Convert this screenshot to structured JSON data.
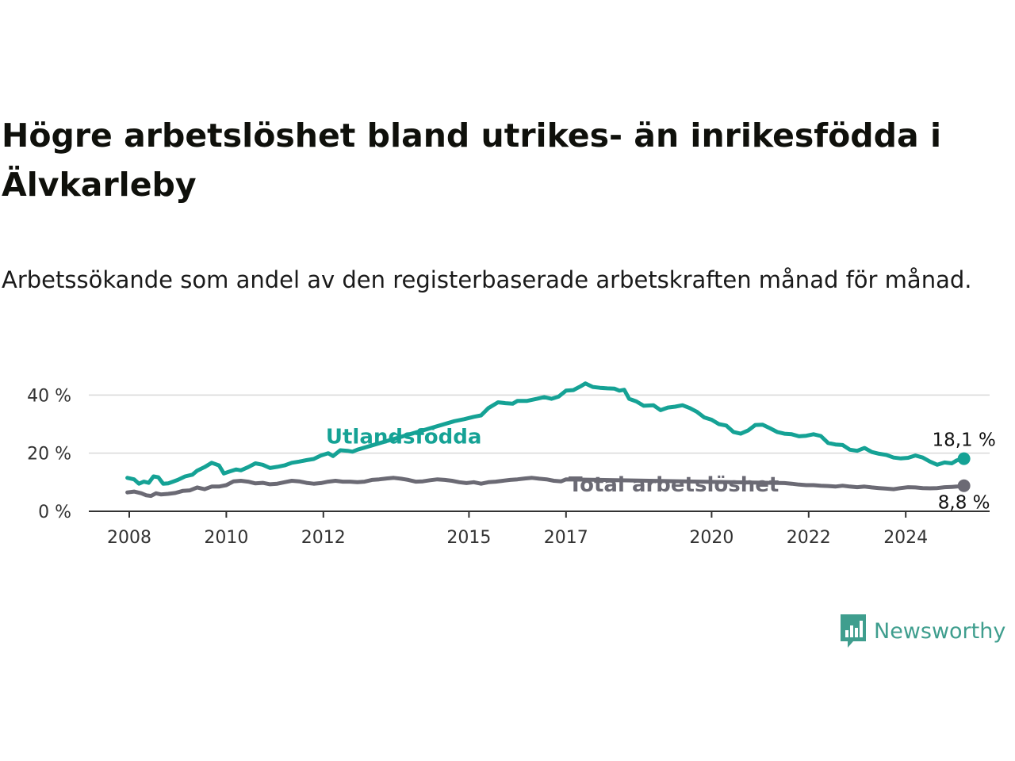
{
  "header": {
    "title": "Högre arbetslöshet bland utrikes- än inrikesfödda i Älvkarleby",
    "subtitle": "Arbetssökande som andel av den registerbaserade arbetskraften månad för månad."
  },
  "brand": {
    "name": "Newsworthy",
    "icon": "newsworthy-logo-icon",
    "color": "#3f9e8e"
  },
  "chart_data": {
    "type": "line",
    "ylim": [
      0,
      45
    ],
    "xlim": [
      2007.2,
      2025.8
    ],
    "yticks": [
      0,
      20,
      40
    ],
    "ytick_labels": [
      "0 %",
      "20 %",
      "40 %"
    ],
    "xticks": [
      2008,
      2010,
      2012,
      2015,
      2017,
      2020,
      2022,
      2024
    ],
    "xtick_labels": [
      "2008",
      "2010",
      "2012",
      "2015",
      "2017",
      "2020",
      "2022",
      "2024"
    ],
    "grid": "horizontal",
    "series": [
      {
        "name": "Utlandsfödda",
        "color": "#15a295",
        "end_label": "18,1 %",
        "points": [
          [
            2007.96,
            11.5
          ],
          [
            2008.1,
            11.0
          ],
          [
            2008.2,
            9.5
          ],
          [
            2008.3,
            10.2
          ],
          [
            2008.4,
            9.8
          ],
          [
            2008.5,
            12.0
          ],
          [
            2008.6,
            11.7
          ],
          [
            2008.7,
            9.5
          ],
          [
            2008.8,
            9.6
          ],
          [
            2008.9,
            10.2
          ],
          [
            2009.0,
            10.8
          ],
          [
            2009.15,
            12.0
          ],
          [
            2009.3,
            12.6
          ],
          [
            2009.4,
            14.0
          ],
          [
            2009.55,
            15.2
          ],
          [
            2009.7,
            16.7
          ],
          [
            2009.85,
            15.8
          ],
          [
            2009.95,
            13.0
          ],
          [
            2010.05,
            13.6
          ],
          [
            2010.2,
            14.4
          ],
          [
            2010.3,
            14.1
          ],
          [
            2010.45,
            15.2
          ],
          [
            2010.6,
            16.5
          ],
          [
            2010.75,
            16.0
          ],
          [
            2010.9,
            14.9
          ],
          [
            2011.05,
            15.3
          ],
          [
            2011.2,
            15.8
          ],
          [
            2011.35,
            16.7
          ],
          [
            2011.5,
            17.1
          ],
          [
            2011.65,
            17.6
          ],
          [
            2011.8,
            18.0
          ],
          [
            2011.95,
            19.2
          ],
          [
            2012.1,
            20.0
          ],
          [
            2012.2,
            19.0
          ],
          [
            2012.35,
            21.0
          ],
          [
            2012.5,
            20.8
          ],
          [
            2012.6,
            20.5
          ],
          [
            2012.7,
            21.2
          ],
          [
            2014.7,
            31.0
          ],
          [
            2014.9,
            31.7
          ],
          [
            2015.1,
            32.5
          ],
          [
            2015.25,
            33.0
          ],
          [
            2015.4,
            35.5
          ],
          [
            2015.6,
            37.5
          ],
          [
            2015.75,
            37.2
          ],
          [
            2015.9,
            37.0
          ],
          [
            2016.0,
            38.0
          ],
          [
            2016.2,
            38.0
          ],
          [
            2016.4,
            38.7
          ],
          [
            2016.55,
            39.3
          ],
          [
            2016.7,
            38.7
          ],
          [
            2016.85,
            39.5
          ],
          [
            2017.0,
            41.5
          ],
          [
            2017.15,
            41.7
          ],
          [
            2017.3,
            43.0
          ],
          [
            2017.4,
            44.0
          ],
          [
            2017.55,
            42.8
          ],
          [
            2017.7,
            42.5
          ],
          [
            2017.85,
            42.3
          ],
          [
            2018.0,
            42.2
          ],
          [
            2018.1,
            41.5
          ],
          [
            2018.2,
            41.8
          ],
          [
            2018.3,
            38.7
          ],
          [
            2018.45,
            37.8
          ],
          [
            2018.6,
            36.3
          ],
          [
            2018.8,
            36.5
          ],
          [
            2018.95,
            34.8
          ],
          [
            2019.1,
            35.7
          ],
          [
            2019.25,
            36.0
          ],
          [
            2019.4,
            36.5
          ],
          [
            2019.55,
            35.5
          ],
          [
            2019.7,
            34.2
          ],
          [
            2019.85,
            32.3
          ],
          [
            2020.0,
            31.5
          ],
          [
            2020.15,
            30.0
          ],
          [
            2020.3,
            29.5
          ],
          [
            2020.45,
            27.3
          ],
          [
            2020.6,
            26.7
          ],
          [
            2020.75,
            27.8
          ],
          [
            2020.9,
            29.7
          ],
          [
            2021.05,
            29.8
          ],
          [
            2021.2,
            28.6
          ],
          [
            2021.35,
            27.3
          ],
          [
            2021.5,
            26.7
          ],
          [
            2021.65,
            26.5
          ],
          [
            2021.8,
            25.8
          ],
          [
            2021.95,
            26.0
          ],
          [
            2022.1,
            26.5
          ],
          [
            2022.25,
            25.9
          ],
          [
            2022.4,
            23.5
          ],
          [
            2022.55,
            23.0
          ],
          [
            2022.7,
            22.8
          ],
          [
            2022.85,
            21.2
          ],
          [
            2023.0,
            20.8
          ],
          [
            2023.15,
            21.8
          ],
          [
            2023.3,
            20.4
          ],
          [
            2023.45,
            19.8
          ],
          [
            2023.6,
            19.4
          ],
          [
            2023.75,
            18.5
          ],
          [
            2023.9,
            18.2
          ],
          [
            2024.05,
            18.4
          ],
          [
            2024.2,
            19.2
          ],
          [
            2024.35,
            18.5
          ],
          [
            2024.5,
            17.1
          ],
          [
            2024.65,
            16.0
          ],
          [
            2024.8,
            16.8
          ],
          [
            2024.95,
            16.5
          ],
          [
            2025.05,
            17.5
          ],
          [
            2025.2,
            18.1
          ]
        ]
      },
      {
        "name": "Total arbetslöshet",
        "color": "#6b6a74",
        "end_label": "8,8 %",
        "points": [
          [
            2007.96,
            6.5
          ],
          [
            2008.1,
            6.8
          ],
          [
            2008.25,
            6.2
          ],
          [
            2008.35,
            5.5
          ],
          [
            2008.45,
            5.3
          ],
          [
            2008.55,
            6.2
          ],
          [
            2008.65,
            5.8
          ],
          [
            2008.8,
            6.0
          ],
          [
            2008.95,
            6.3
          ],
          [
            2009.1,
            7.0
          ],
          [
            2009.25,
            7.2
          ],
          [
            2009.4,
            8.2
          ],
          [
            2009.55,
            7.6
          ],
          [
            2009.7,
            8.5
          ],
          [
            2009.85,
            8.5
          ],
          [
            2010.0,
            9.0
          ],
          [
            2010.15,
            10.3
          ],
          [
            2010.3,
            10.5
          ],
          [
            2010.45,
            10.2
          ],
          [
            2010.6,
            9.6
          ],
          [
            2010.75,
            9.8
          ],
          [
            2010.9,
            9.3
          ],
          [
            2011.05,
            9.5
          ],
          [
            2011.2,
            10.0
          ],
          [
            2011.35,
            10.5
          ],
          [
            2011.5,
            10.3
          ],
          [
            2011.65,
            9.8
          ],
          [
            2011.8,
            9.5
          ],
          [
            2011.95,
            9.7
          ],
          [
            2012.1,
            10.2
          ],
          [
            2012.25,
            10.5
          ],
          [
            2012.4,
            10.2
          ],
          [
            2012.55,
            10.2
          ],
          [
            2012.7,
            10.0
          ],
          [
            2012.85,
            10.2
          ],
          [
            2013.0,
            10.8
          ],
          [
            2013.15,
            11.0
          ],
          [
            2013.3,
            11.3
          ],
          [
            2013.45,
            11.5
          ],
          [
            2013.6,
            11.2
          ],
          [
            2013.75,
            10.8
          ],
          [
            2013.9,
            10.2
          ],
          [
            2014.05,
            10.3
          ],
          [
            2014.2,
            10.7
          ],
          [
            2014.35,
            11.0
          ],
          [
            2014.5,
            10.8
          ],
          [
            2014.65,
            10.5
          ],
          [
            2014.8,
            10.0
          ],
          [
            2014.95,
            9.7
          ],
          [
            2015.1,
            10.0
          ],
          [
            2015.25,
            9.5
          ],
          [
            2015.4,
            10.0
          ],
          [
            2015.55,
            10.2
          ],
          [
            2015.7,
            10.5
          ],
          [
            2015.85,
            10.8
          ],
          [
            2016.0,
            11.0
          ],
          [
            2016.15,
            11.3
          ],
          [
            2016.3,
            11.5
          ],
          [
            2016.45,
            11.2
          ],
          [
            2016.6,
            11.0
          ],
          [
            2016.75,
            10.5
          ],
          [
            2016.9,
            10.3
          ],
          [
            2017.0,
            11.0
          ],
          [
            2021.5,
            9.7
          ],
          [
            2021.65,
            9.5
          ],
          [
            2021.8,
            9.2
          ],
          [
            2021.95,
            9.0
          ],
          [
            2022.1,
            9.0
          ],
          [
            2022.25,
            8.8
          ],
          [
            2022.4,
            8.7
          ],
          [
            2022.55,
            8.5
          ],
          [
            2022.7,
            8.8
          ],
          [
            2022.85,
            8.5
          ],
          [
            2023.0,
            8.3
          ],
          [
            2023.15,
            8.5
          ],
          [
            2023.3,
            8.2
          ],
          [
            2023.45,
            8.0
          ],
          [
            2023.6,
            7.8
          ],
          [
            2023.75,
            7.6
          ],
          [
            2023.9,
            8.0
          ],
          [
            2024.05,
            8.3
          ],
          [
            2024.2,
            8.2
          ],
          [
            2024.35,
            8.0
          ],
          [
            2024.5,
            7.9
          ],
          [
            2024.65,
            8.0
          ],
          [
            2024.8,
            8.3
          ],
          [
            2024.95,
            8.4
          ],
          [
            2025.05,
            8.5
          ],
          [
            2025.2,
            8.8
          ]
        ]
      }
    ],
    "inline_labels": [
      {
        "series": "Utlandsfödda",
        "text": "Utlandsfödda",
        "x": 2012.05,
        "y": 25.8
      },
      {
        "series": "Total arbetslöshet",
        "text": "Total arbetslöshet",
        "x": 2017.05,
        "y": 9.3
      }
    ]
  }
}
